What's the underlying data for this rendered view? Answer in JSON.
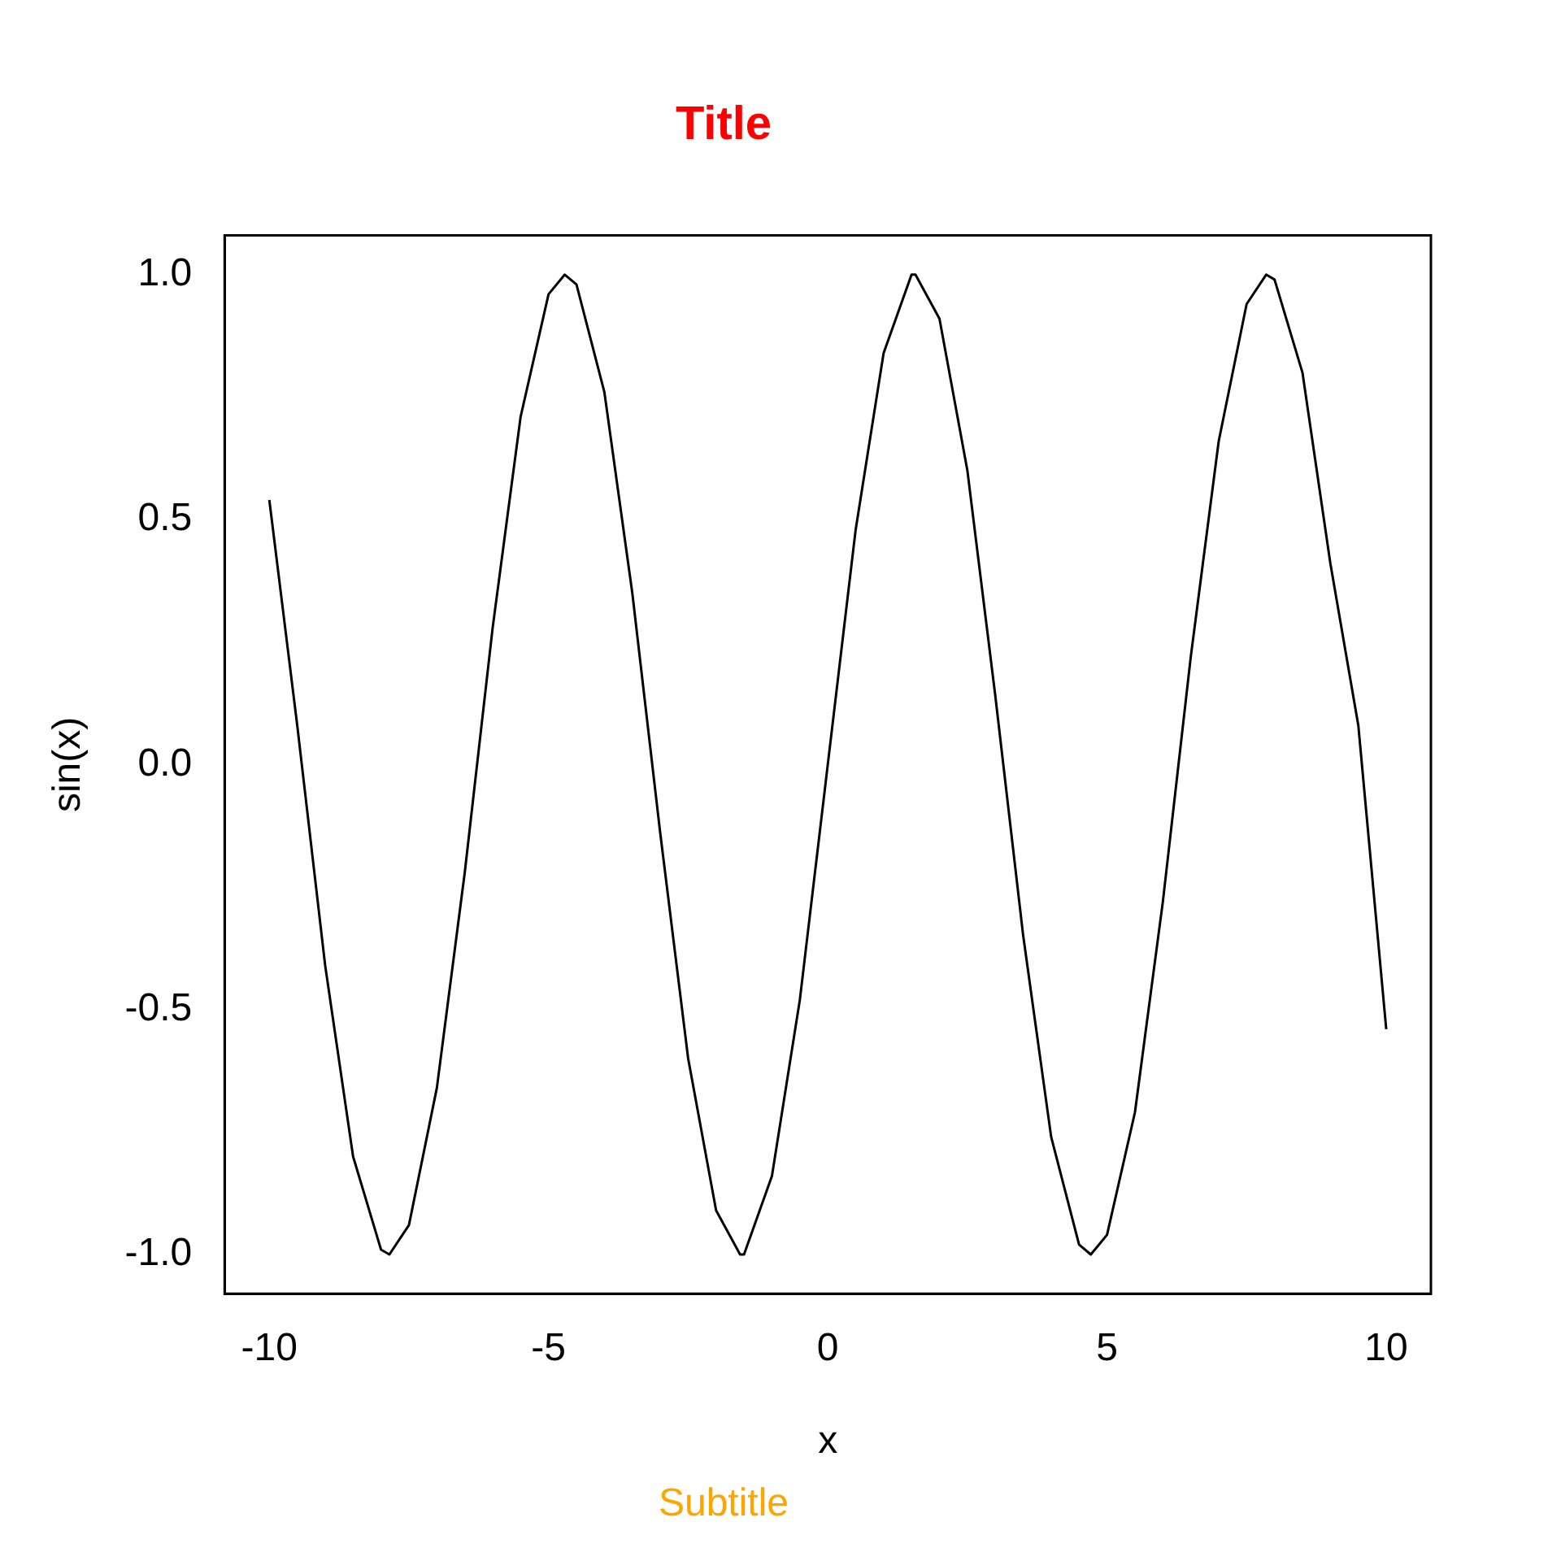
{
  "chart_data": {
    "type": "line",
    "title": "Title",
    "subtitle": "Subtitle",
    "xlabel": "x",
    "ylabel": "sin(x)",
    "x": [
      -10,
      -9.5,
      -9,
      -8.5,
      -8,
      -7.85,
      -7.5,
      -7,
      -6.5,
      -6,
      -5.5,
      -5,
      -4.71,
      -4.5,
      -4,
      -3.5,
      -3,
      -2.5,
      -2,
      -1.57,
      -1.5,
      -1,
      -0.5,
      0,
      0.5,
      1,
      1.5,
      1.57,
      2,
      2.5,
      3,
      3.5,
      4,
      4.5,
      4.71,
      5,
      5.5,
      6,
      6.5,
      7,
      7.5,
      7.85,
      8,
      8.5,
      9,
      9.5,
      10
    ],
    "series": [
      {
        "color": "#000000",
        "values": [
          0.54,
          0.08,
          -0.41,
          -0.8,
          -0.99,
          -1,
          -0.94,
          -0.66,
          -0.22,
          0.28,
          0.71,
          0.96,
          1,
          0.98,
          0.76,
          0.35,
          -0.14,
          -0.6,
          -0.91,
          -1,
          -1,
          -0.84,
          -0.48,
          0,
          0.48,
          0.84,
          1,
          1,
          0.91,
          0.6,
          0.14,
          -0.35,
          -0.76,
          -0.98,
          -1,
          -0.96,
          -0.71,
          -0.28,
          0.22,
          0.66,
          0.94,
          1,
          0.99,
          0.8,
          0.41,
          0.08,
          -0.54
        ]
      }
    ],
    "xlim": [
      -10.8,
      10.8
    ],
    "ylim": [
      -1.08,
      1.08
    ],
    "xticks": [
      -10,
      -5,
      0,
      5,
      10
    ],
    "yticks": [
      {
        "value": -1,
        "label": "-1.0"
      },
      {
        "value": -0.5,
        "label": "-0.5"
      },
      {
        "value": 0,
        "label": "0.0"
      },
      {
        "value": 0.5,
        "label": "0.5"
      },
      {
        "value": 1,
        "label": "1.0"
      }
    ],
    "grid": false,
    "legend": false,
    "marker": "none",
    "line_style": "solid"
  }
}
